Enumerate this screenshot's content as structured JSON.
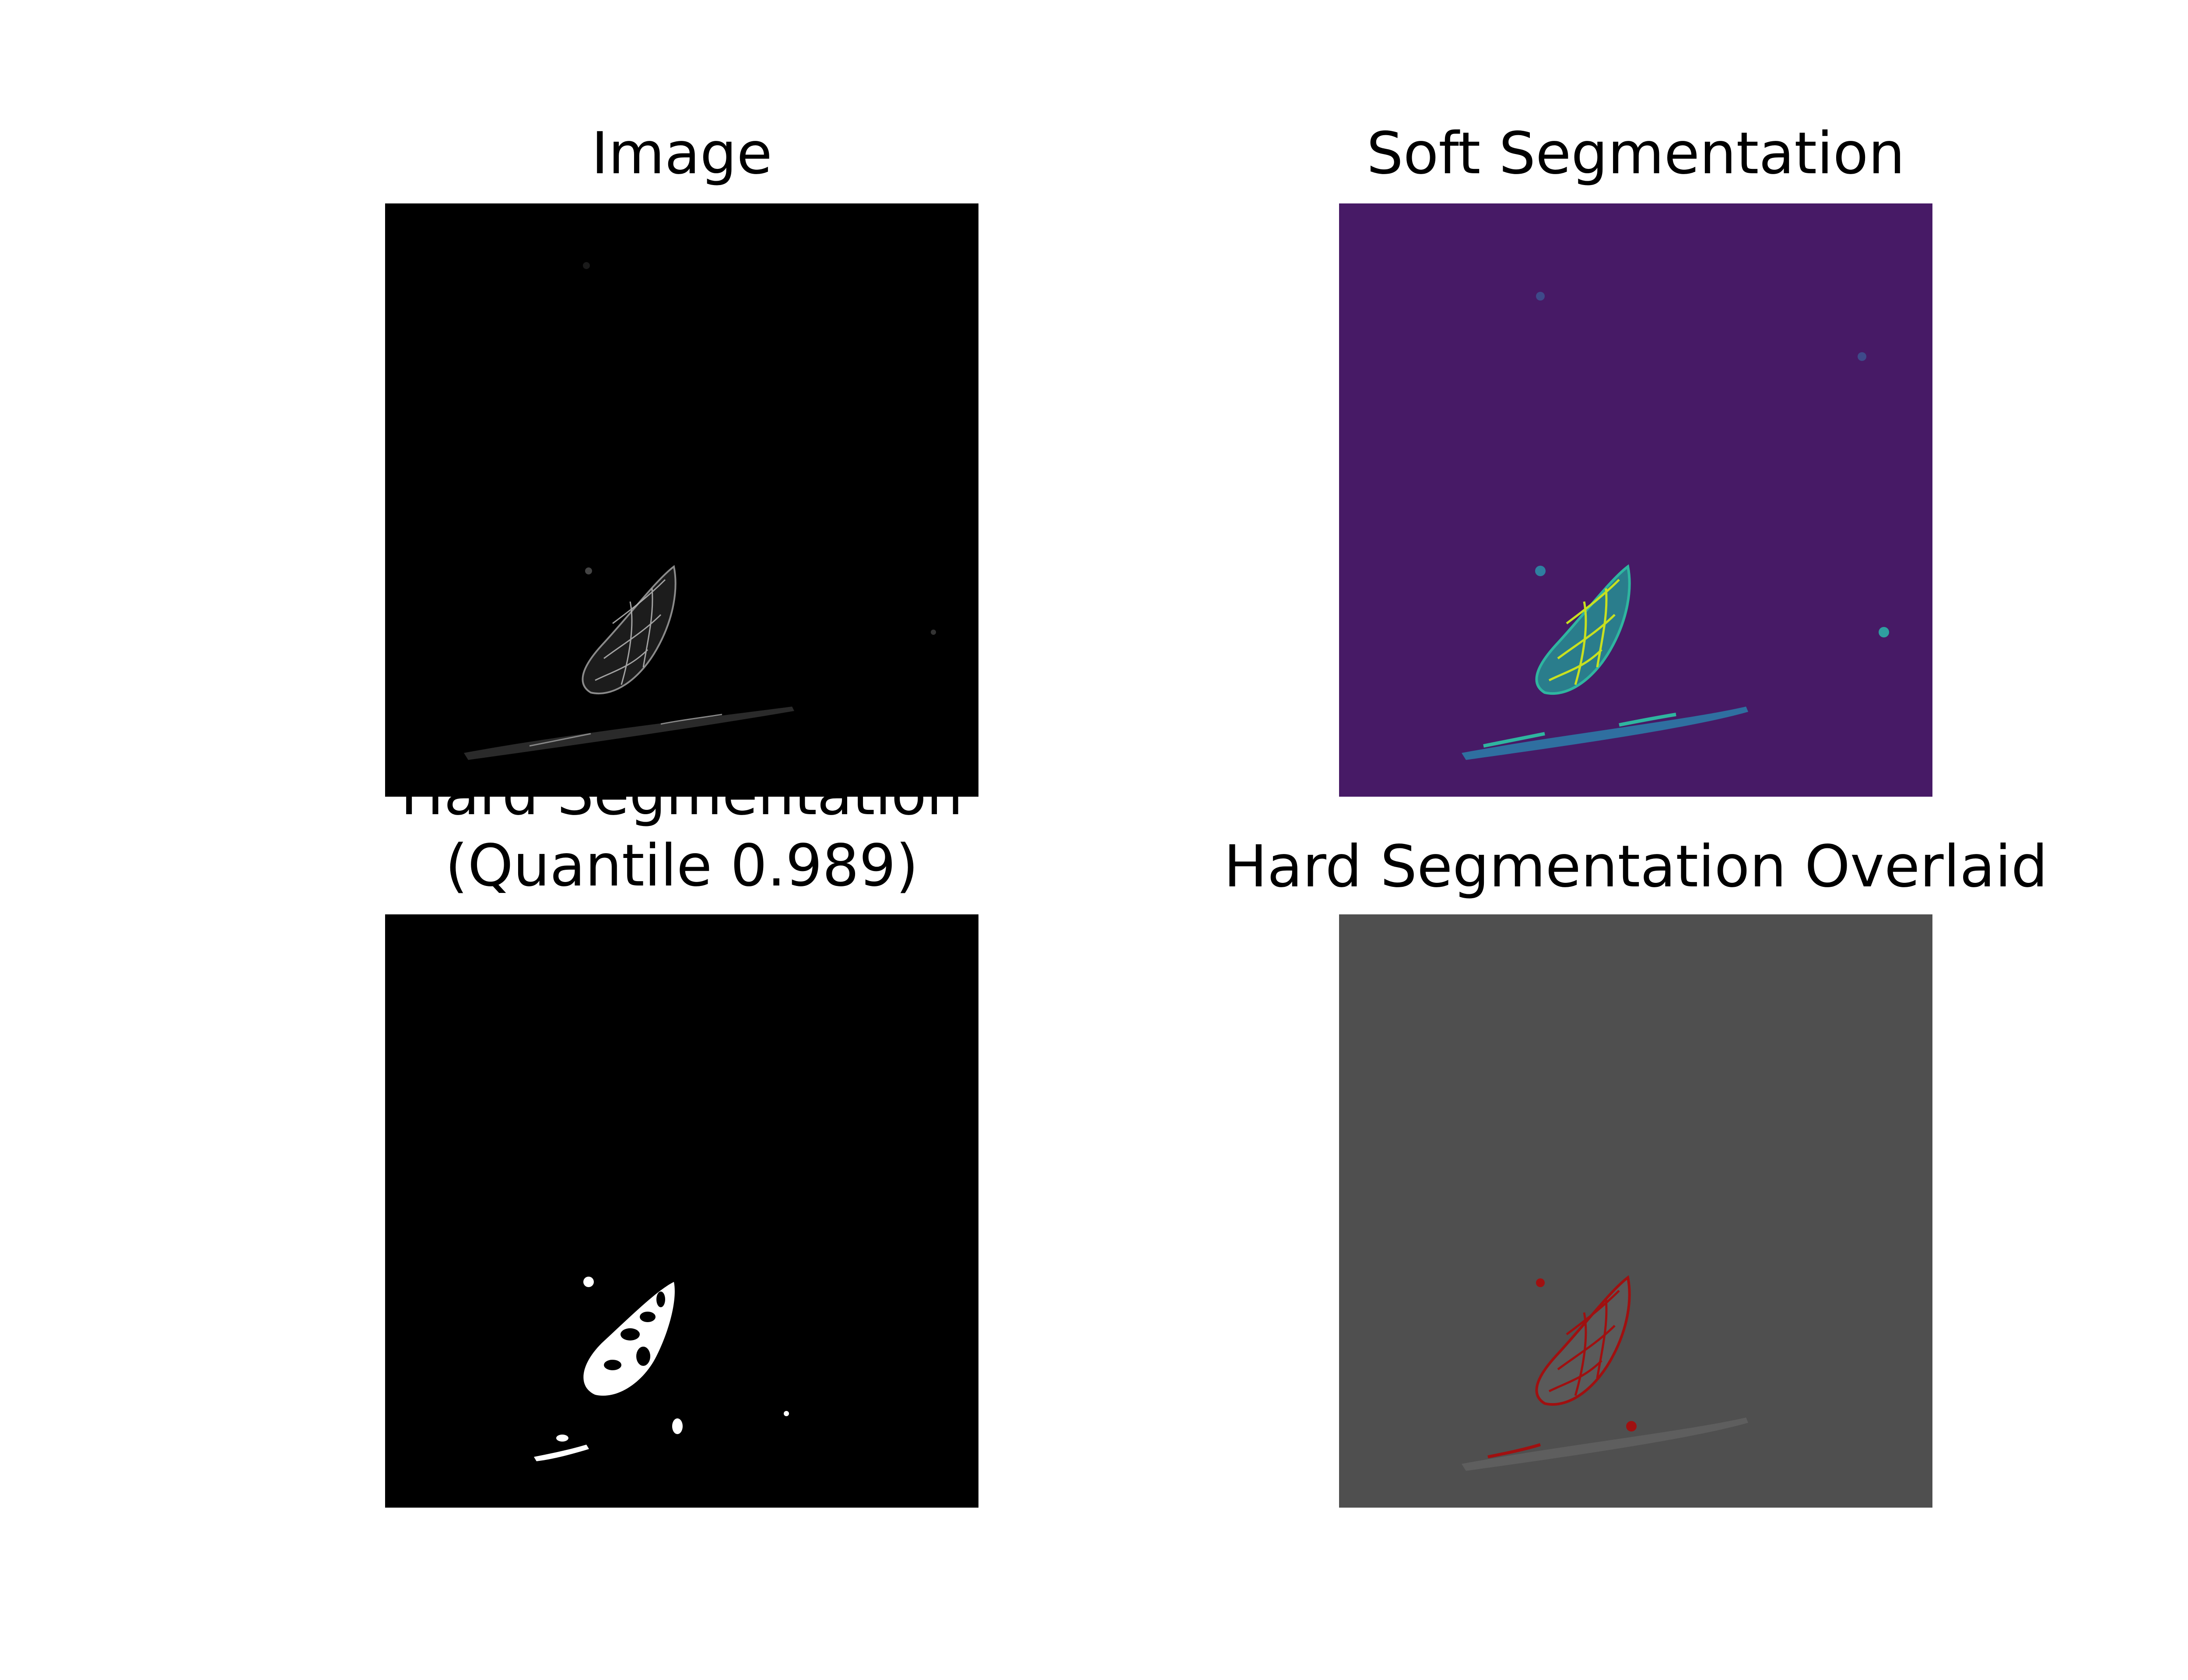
{
  "panels": [
    {
      "id": "image",
      "title": "Image",
      "colormap": "gray"
    },
    {
      "id": "soft_segmentation",
      "title": "Soft Segmentation",
      "colormap": "viridis"
    },
    {
      "id": "hard_segmentation",
      "title": "Hard Segmentation\n(Quantile 0.989)",
      "colormap": "binary",
      "title_lines": [
        "Hard Segmentation",
        "(Quantile 0.989)"
      ]
    },
    {
      "id": "hard_segmentation_overlaid",
      "title": "Hard Segmentation Overlaid",
      "colormap": "gray with red overlay"
    }
  ],
  "colors": {
    "image_background": "#000000",
    "soft_background": "#471a66",
    "soft_high": "#c8e020",
    "soft_mid": "#2fb5a0",
    "hard_background": "#000000",
    "hard_foreground": "#ffffff",
    "overlay_background": "#4f4f4f",
    "overlay_red": "#a01010"
  }
}
